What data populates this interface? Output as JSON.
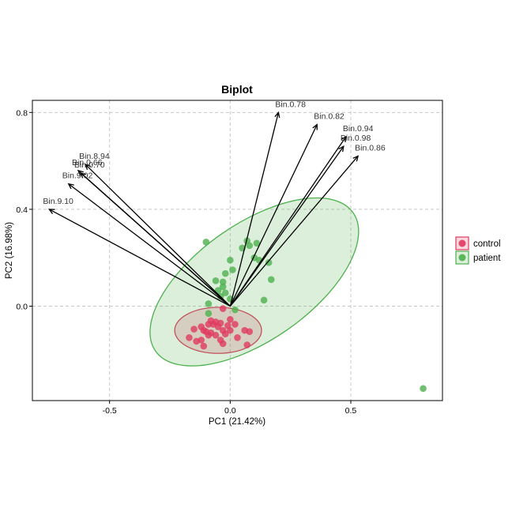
{
  "chart_data": {
    "type": "scatter",
    "title": "Biplot",
    "xlabel": "PC1 (21.42%)",
    "ylabel": "PC2 (16.98%)",
    "xlim": [
      -0.82,
      0.88
    ],
    "ylim": [
      -0.39,
      0.85
    ],
    "xticks": [
      -0.5,
      0.0,
      0.5
    ],
    "xtick_labels": [
      "-0.5",
      "0.0",
      "0.5"
    ],
    "yticks": [
      0.0,
      0.4,
      0.8
    ],
    "ytick_labels": [
      "0.0",
      "0.4",
      "0.8"
    ],
    "grid": true,
    "legend_position": "right",
    "series": [
      {
        "name": "control",
        "color": "#e0395f",
        "ellipse": {
          "cx": -0.05,
          "cy": -0.1,
          "rx": 0.18,
          "ry": 0.095,
          "angle_deg": 0
        },
        "points": [
          [
            -0.17,
            -0.13
          ],
          [
            -0.14,
            -0.145
          ],
          [
            -0.12,
            -0.14
          ],
          [
            -0.11,
            -0.165
          ],
          [
            -0.15,
            -0.095
          ],
          [
            -0.12,
            -0.085
          ],
          [
            -0.1,
            -0.105
          ],
          [
            -0.09,
            -0.12
          ],
          [
            -0.08,
            -0.11
          ],
          [
            -0.07,
            -0.075
          ],
          [
            -0.06,
            -0.065
          ],
          [
            -0.05,
            -0.085
          ],
          [
            -0.04,
            -0.07
          ],
          [
            -0.03,
            -0.1
          ],
          [
            -0.02,
            -0.115
          ],
          [
            -0.01,
            -0.08
          ],
          [
            0.0,
            -0.1
          ],
          [
            0.02,
            -0.075
          ],
          [
            0.03,
            -0.13
          ],
          [
            0.06,
            -0.1
          ],
          [
            0.08,
            -0.105
          ],
          [
            0.07,
            -0.16
          ],
          [
            -0.03,
            -0.155
          ],
          [
            -0.08,
            -0.06
          ],
          [
            -0.04,
            -0.14
          ],
          [
            -0.06,
            -0.12
          ],
          [
            -0.09,
            -0.075
          ],
          [
            0.0,
            -0.055
          ],
          [
            -0.03,
            -0.01
          ],
          [
            -0.11,
            -0.1
          ]
        ]
      },
      {
        "name": "patient",
        "color": "#4db04d",
        "ellipse": {
          "cx": 0.1,
          "cy": 0.1,
          "rx": 0.5,
          "ry": 0.24,
          "angle_deg": 35
        },
        "points": [
          [
            -0.1,
            0.265
          ],
          [
            0.07,
            0.27
          ],
          [
            0.08,
            0.25
          ],
          [
            0.11,
            0.26
          ],
          [
            0.05,
            0.24
          ],
          [
            0.1,
            0.2
          ],
          [
            0.12,
            0.19
          ],
          [
            0.16,
            0.18
          ],
          [
            0.17,
            0.11
          ],
          [
            0.0,
            0.19
          ],
          [
            0.01,
            0.15
          ],
          [
            -0.02,
            0.135
          ],
          [
            -0.06,
            0.105
          ],
          [
            -0.03,
            0.1
          ],
          [
            -0.05,
            0.065
          ],
          [
            -0.03,
            0.08
          ],
          [
            -0.02,
            0.055
          ],
          [
            -0.04,
            0.04
          ],
          [
            0.0,
            0.03
          ],
          [
            0.14,
            0.025
          ],
          [
            -0.09,
            0.01
          ],
          [
            -0.09,
            -0.03
          ],
          [
            0.02,
            -0.015
          ],
          [
            0.8,
            -0.34
          ]
        ]
      }
    ],
    "loadings": [
      {
        "name": "Bin.0.78",
        "x": 0.2,
        "y": 0.8
      },
      {
        "name": "Bin.0.82",
        "x": 0.36,
        "y": 0.75
      },
      {
        "name": "Bin.0.94",
        "x": 0.48,
        "y": 0.7
      },
      {
        "name": "Bin.0.98",
        "x": 0.47,
        "y": 0.66
      },
      {
        "name": "Bin.0.86",
        "x": 0.53,
        "y": 0.62
      },
      {
        "name": "Bin.8.94",
        "x": -0.6,
        "y": 0.585
      },
      {
        "name": "Bin.0.66",
        "x": -0.63,
        "y": 0.56
      },
      {
        "name": "Bin.0.70",
        "x": -0.62,
        "y": 0.55
      },
      {
        "name": "Bin.9.02",
        "x": -0.67,
        "y": 0.505
      },
      {
        "name": "Bin.9.10",
        "x": -0.75,
        "y": 0.4
      }
    ]
  }
}
